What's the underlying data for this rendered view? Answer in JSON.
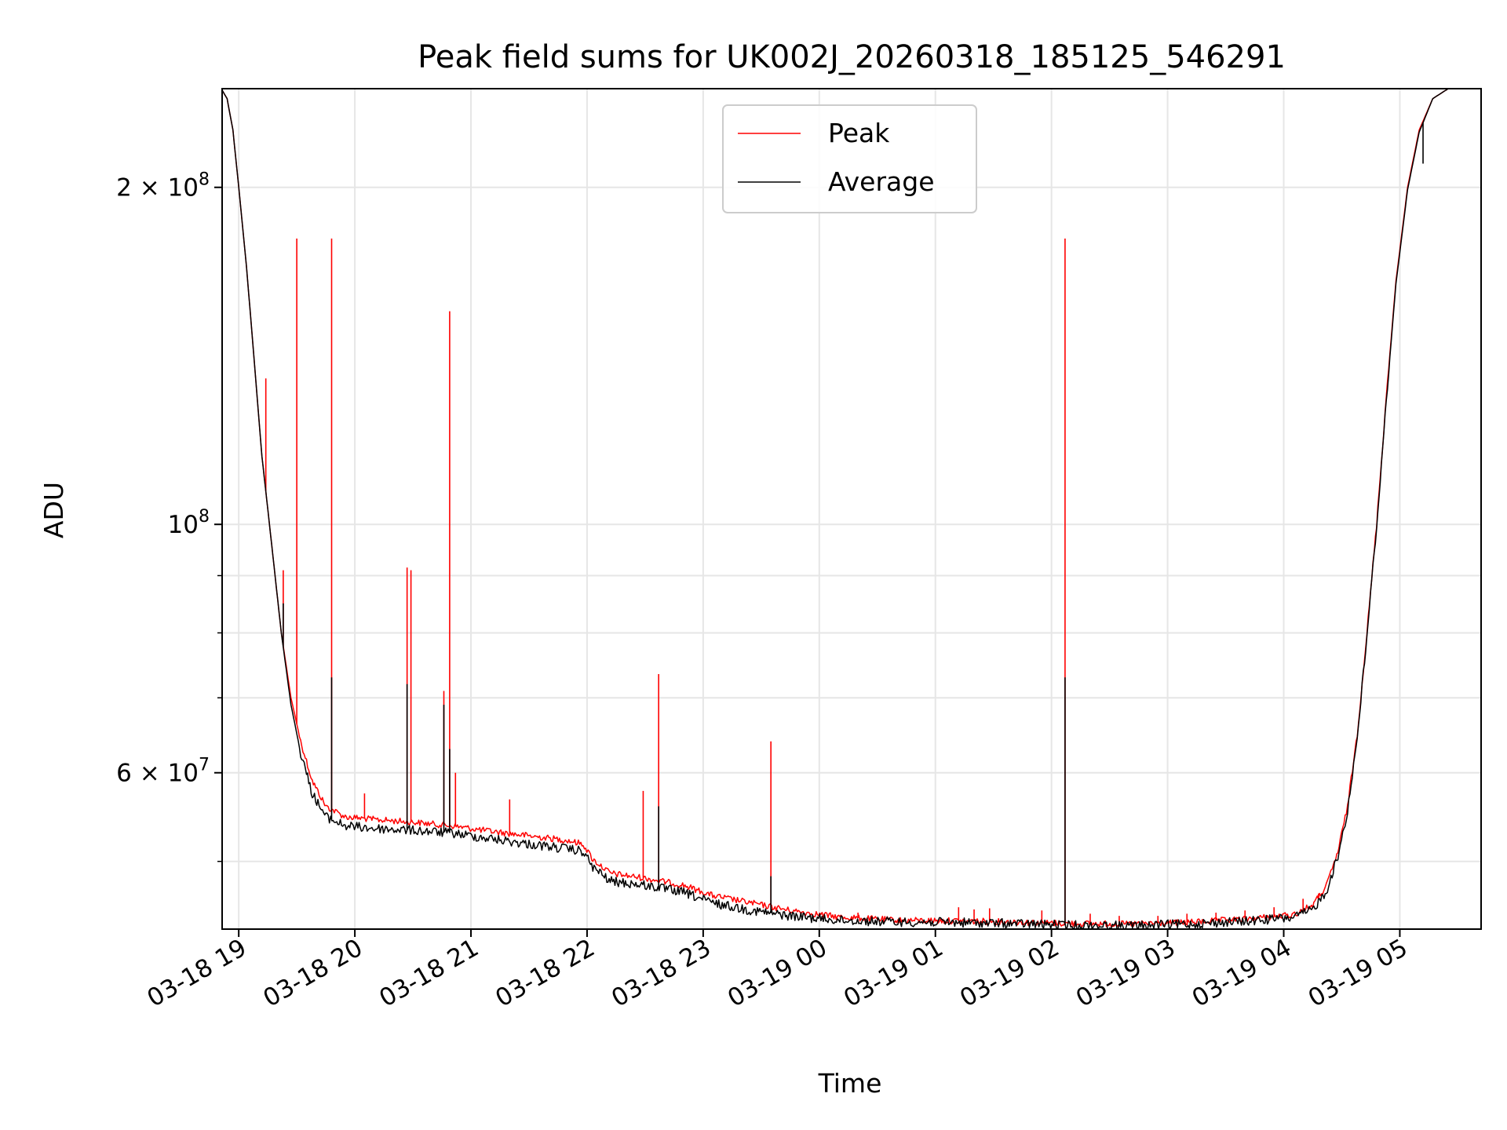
{
  "chart_data": {
    "type": "line",
    "title": "Peak field sums for UK002J_20260318_185125_546291",
    "xlabel": "Time",
    "ylabel": "ADU",
    "yscale": "log",
    "ylim": [
      43500000,
      245000000
    ],
    "xlim": [
      "2026-03-18 18:51:25",
      "2026-03-19 05:42:00"
    ],
    "grid": true,
    "legend_position": "top-center",
    "x_ticks": [
      {
        "t": "2026-03-18 19:00",
        "label": "03-18 19"
      },
      {
        "t": "2026-03-18 20:00",
        "label": "03-18 20"
      },
      {
        "t": "2026-03-18 21:00",
        "label": "03-18 21"
      },
      {
        "t": "2026-03-18 22:00",
        "label": "03-18 22"
      },
      {
        "t": "2026-03-18 23:00",
        "label": "03-18 23"
      },
      {
        "t": "2026-03-19 00:00",
        "label": "03-19 00"
      },
      {
        "t": "2026-03-19 01:00",
        "label": "03-19 01"
      },
      {
        "t": "2026-03-19 02:00",
        "label": "03-19 02"
      },
      {
        "t": "2026-03-19 03:00",
        "label": "03-19 03"
      },
      {
        "t": "2026-03-19 04:00",
        "label": "03-19 04"
      },
      {
        "t": "2026-03-19 05:00",
        "label": "03-19 05"
      }
    ],
    "y_ticks_major": [
      {
        "v": 100000000,
        "mant": "10",
        "exp": "8"
      },
      {
        "v": 200000000,
        "mant": "2 × 10",
        "exp": "8"
      },
      {
        "v": 60000000,
        "mant": "6 × 10",
        "exp": "7"
      }
    ],
    "y_ticks_minor": [
      50000000,
      70000000,
      80000000,
      90000000
    ],
    "series": [
      {
        "name": "Peak",
        "color": "#ff0000",
        "points": [
          [
            "2026-03-18 18:51",
            245000000
          ],
          [
            "2026-03-18 18:54",
            240000000
          ],
          [
            "2026-03-18 18:57",
            225000000
          ],
          [
            "2026-03-18 19:00",
            200000000
          ],
          [
            "2026-03-18 19:04",
            170000000
          ],
          [
            "2026-03-18 19:08",
            140000000
          ],
          [
            "2026-03-18 19:12",
            115000000
          ],
          [
            "2026-03-18 19:17",
            96000000
          ],
          [
            "2026-03-18 19:22",
            80000000
          ],
          [
            "2026-03-18 19:27",
            70000000
          ],
          [
            "2026-03-18 19:32",
            64000000
          ],
          [
            "2026-03-18 19:38",
            59000000
          ],
          [
            "2026-03-18 19:45",
            56000000
          ],
          [
            "2026-03-18 19:55",
            54800000
          ],
          [
            "2026-03-18 20:10",
            54500000
          ],
          [
            "2026-03-18 20:30",
            54200000
          ],
          [
            "2026-03-18 20:50",
            53800000
          ],
          [
            "2026-03-18 21:10",
            53200000
          ],
          [
            "2026-03-18 21:30",
            52700000
          ],
          [
            "2026-03-18 21:50",
            52200000
          ],
          [
            "2026-03-18 21:58",
            51800000
          ],
          [
            "2026-03-18 22:03",
            50200000
          ],
          [
            "2026-03-18 22:12",
            48800000
          ],
          [
            "2026-03-18 22:30",
            48300000
          ],
          [
            "2026-03-18 22:50",
            47600000
          ],
          [
            "2026-03-18 23:05",
            46600000
          ],
          [
            "2026-03-18 23:25",
            45900000
          ],
          [
            "2026-03-18 23:45",
            45200000
          ],
          [
            "2026-03-19 00:10",
            44600000
          ],
          [
            "2026-03-19 00:40",
            44300000
          ],
          [
            "2026-03-19 01:10",
            44250000
          ],
          [
            "2026-03-19 01:40",
            44150000
          ],
          [
            "2026-03-19 02:10",
            44000000
          ],
          [
            "2026-03-19 02:40",
            43950000
          ],
          [
            "2026-03-19 03:10",
            44100000
          ],
          [
            "2026-03-19 03:40",
            44400000
          ],
          [
            "2026-03-19 04:05",
            44800000
          ],
          [
            "2026-03-19 04:15",
            45700000
          ],
          [
            "2026-03-19 04:22",
            47500000
          ],
          [
            "2026-03-19 04:28",
            51000000
          ],
          [
            "2026-03-19 04:33",
            56000000
          ],
          [
            "2026-03-19 04:38",
            65000000
          ],
          [
            "2026-03-19 04:43",
            80000000
          ],
          [
            "2026-03-19 04:48",
            100000000
          ],
          [
            "2026-03-19 04:53",
            130000000
          ],
          [
            "2026-03-19 04:58",
            165000000
          ],
          [
            "2026-03-19 05:04",
            200000000
          ],
          [
            "2026-03-19 05:10",
            225000000
          ],
          [
            "2026-03-19 05:17",
            240000000
          ],
          [
            "2026-03-19 05:25",
            245000000
          ],
          [
            "2026-03-19 05:42",
            245000000
          ]
        ],
        "spikes": [
          [
            "2026-03-18 19:14",
            135000000
          ],
          [
            "2026-03-18 19:23",
            91000000
          ],
          [
            "2026-03-18 19:30",
            180000000
          ],
          [
            "2026-03-18 19:48",
            180000000
          ],
          [
            "2026-03-18 20:05",
            57500000
          ],
          [
            "2026-03-18 20:27",
            91500000
          ],
          [
            "2026-03-18 20:29",
            91000000
          ],
          [
            "2026-03-18 20:46",
            71000000
          ],
          [
            "2026-03-18 20:49",
            155000000
          ],
          [
            "2026-03-18 20:52",
            60000000
          ],
          [
            "2026-03-18 21:20",
            56800000
          ],
          [
            "2026-03-18 22:29",
            57800000
          ],
          [
            "2026-03-18 22:37",
            73500000
          ],
          [
            "2026-03-18 23:35",
            64000000
          ],
          [
            "2026-03-19 00:20",
            45000000
          ],
          [
            "2026-03-19 01:12",
            45500000
          ],
          [
            "2026-03-19 01:20",
            45300000
          ],
          [
            "2026-03-19 01:28",
            45400000
          ],
          [
            "2026-03-19 01:55",
            45200000
          ],
          [
            "2026-03-19 02:07",
            180000000
          ],
          [
            "2026-03-19 02:20",
            44900000
          ],
          [
            "2026-03-19 02:35",
            44700000
          ],
          [
            "2026-03-19 02:55",
            44700000
          ],
          [
            "2026-03-19 03:10",
            44900000
          ],
          [
            "2026-03-19 03:25",
            45000000
          ],
          [
            "2026-03-19 03:40",
            45200000
          ],
          [
            "2026-03-19 03:55",
            45500000
          ],
          [
            "2026-03-19 04:10",
            46300000
          ],
          [
            "2026-03-19 04:18",
            46800000
          ]
        ]
      },
      {
        "name": "Average",
        "color": "#000000",
        "points": [
          [
            "2026-03-18 18:51",
            245000000
          ],
          [
            "2026-03-18 18:54",
            240000000
          ],
          [
            "2026-03-18 18:57",
            225000000
          ],
          [
            "2026-03-18 19:00",
            200000000
          ],
          [
            "2026-03-18 19:04",
            170000000
          ],
          [
            "2026-03-18 19:08",
            140000000
          ],
          [
            "2026-03-18 19:12",
            115000000
          ],
          [
            "2026-03-18 19:17",
            96000000
          ],
          [
            "2026-03-18 19:22",
            80000000
          ],
          [
            "2026-03-18 19:27",
            69000000
          ],
          [
            "2026-03-18 19:32",
            62500000
          ],
          [
            "2026-03-18 19:38",
            57500000
          ],
          [
            "2026-03-18 19:45",
            54800000
          ],
          [
            "2026-03-18 19:55",
            53800000
          ],
          [
            "2026-03-18 20:10",
            53500000
          ],
          [
            "2026-03-18 20:30",
            53300000
          ],
          [
            "2026-03-18 20:50",
            53000000
          ],
          [
            "2026-03-18 21:10",
            52400000
          ],
          [
            "2026-03-18 21:30",
            51800000
          ],
          [
            "2026-03-18 21:50",
            51300000
          ],
          [
            "2026-03-18 21:58",
            51000000
          ],
          [
            "2026-03-18 22:03",
            49400000
          ],
          [
            "2026-03-18 22:12",
            48000000
          ],
          [
            "2026-03-18 22:30",
            47600000
          ],
          [
            "2026-03-18 22:50",
            46900000
          ],
          [
            "2026-03-18 23:05",
            45900000
          ],
          [
            "2026-03-18 23:25",
            45200000
          ],
          [
            "2026-03-18 23:45",
            44700000
          ],
          [
            "2026-03-19 00:10",
            44300000
          ],
          [
            "2026-03-19 00:40",
            44150000
          ],
          [
            "2026-03-19 01:10",
            44100000
          ],
          [
            "2026-03-19 01:40",
            44000000
          ],
          [
            "2026-03-19 02:10",
            43850000
          ],
          [
            "2026-03-19 02:40",
            43800000
          ],
          [
            "2026-03-19 03:10",
            43950000
          ],
          [
            "2026-03-19 03:40",
            44200000
          ],
          [
            "2026-03-19 04:05",
            44550000
          ],
          [
            "2026-03-19 04:15",
            45300000
          ],
          [
            "2026-03-19 04:22",
            47000000
          ],
          [
            "2026-03-19 04:28",
            50500000
          ],
          [
            "2026-03-19 04:33",
            55500000
          ],
          [
            "2026-03-19 04:38",
            64500000
          ],
          [
            "2026-03-19 04:43",
            79500000
          ],
          [
            "2026-03-19 04:48",
            99500000
          ],
          [
            "2026-03-19 04:53",
            129000000
          ],
          [
            "2026-03-19 04:58",
            164000000
          ],
          [
            "2026-03-19 05:04",
            199000000
          ],
          [
            "2026-03-19 05:10",
            224000000
          ],
          [
            "2026-03-19 05:17",
            240000000
          ],
          [
            "2026-03-19 05:25",
            245000000
          ],
          [
            "2026-03-19 05:42",
            245000000
          ]
        ],
        "spikes": [
          [
            "2026-03-18 19:23",
            85000000
          ],
          [
            "2026-03-18 19:48",
            73000000
          ],
          [
            "2026-03-18 20:27",
            72000000
          ],
          [
            "2026-03-18 20:46",
            69000000
          ],
          [
            "2026-03-18 20:49",
            63000000
          ],
          [
            "2026-03-18 22:37",
            56000000
          ],
          [
            "2026-03-18 23:35",
            48500000
          ],
          [
            "2026-03-19 02:07",
            73000000
          ],
          [
            "2026-03-19 05:12",
            210000000
          ]
        ]
      }
    ]
  }
}
